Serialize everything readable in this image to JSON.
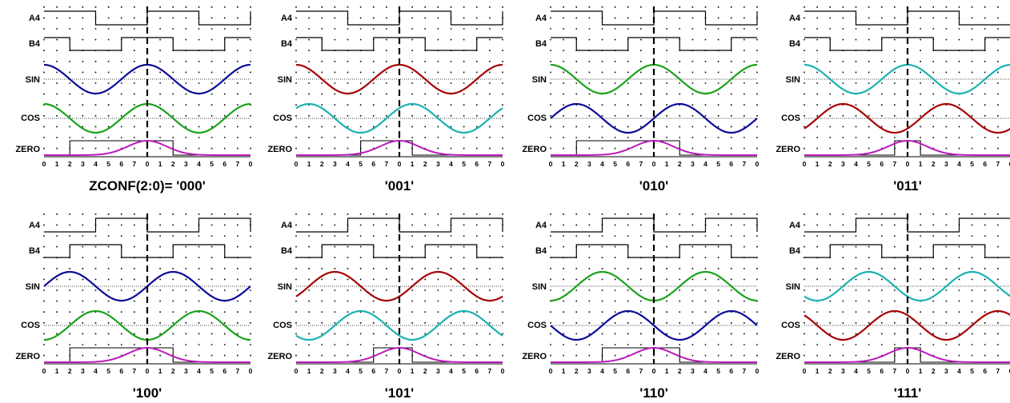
{
  "signal_labels": [
    "A4",
    "B4",
    "SIN",
    "COS",
    "ZERO"
  ],
  "axis_tick_labels": [
    "0",
    "1",
    "2",
    "3",
    "4",
    "5",
    "6",
    "7",
    "0",
    "1",
    "2",
    "3",
    "4",
    "5",
    "6",
    "7",
    "0"
  ],
  "colors": {
    "blue": "#0a0a9a",
    "red": "#a80000",
    "green": "#1aa21a",
    "cyan": "#1ab2b2",
    "magenta": "#bb1bbb",
    "black": "#000000"
  },
  "panels": [
    {
      "title": "ZCONF(2:0)=  '000'",
      "a4": "0",
      "b4": "2",
      "sin": "blue",
      "sin_phase": 0,
      "cos": "green",
      "cos_phase": 0,
      "zero_offset": 0,
      "zero_box": [
        -6,
        2
      ]
    },
    {
      "title": "'001'",
      "a4": "0",
      "b4": "2",
      "sin": "red",
      "sin_phase": 0,
      "cos": "cyan",
      "cos_phase": -1,
      "zero_offset": 0,
      "zero_box": [
        -3,
        1
      ]
    },
    {
      "title": "'010'",
      "a4": "0",
      "b4": "2",
      "sin": "green",
      "sin_phase": 0,
      "cos": "blue",
      "cos_phase": -2,
      "zero_offset": 0,
      "zero_box": [
        -6,
        2
      ]
    },
    {
      "title": "'011'",
      "a4": "0",
      "b4": "2",
      "sin": "cyan",
      "sin_phase": 0,
      "cos": "red",
      "cos_phase": -3,
      "zero_offset": 0,
      "zero_box": [
        -1,
        1
      ]
    },
    {
      "title": "'100'",
      "a4": "4",
      "b4": "6",
      "sin": "blue",
      "sin_phase": -2,
      "cos": "green",
      "cos_phase": -4,
      "zero_offset": 0,
      "zero_box": [
        -6,
        2
      ]
    },
    {
      "title": "'101'",
      "a4": "4",
      "b4": "6",
      "sin": "red",
      "sin_phase": -3,
      "cos": "cyan",
      "cos_phase": -5,
      "zero_offset": 0,
      "zero_box": [
        -2,
        1
      ]
    },
    {
      "title": "'110'",
      "a4": "4",
      "b4": "6",
      "sin": "green",
      "sin_phase": -4,
      "cos": "blue",
      "cos_phase": -6,
      "zero_offset": 0,
      "zero_box": [
        -4,
        2
      ]
    },
    {
      "title": "'111'",
      "a4": "4",
      "b4": "6",
      "sin": "cyan",
      "sin_phase": -5,
      "cos": "red",
      "cos_phase": -7,
      "zero_offset": 0,
      "zero_box": [
        -1,
        1
      ]
    }
  ]
}
